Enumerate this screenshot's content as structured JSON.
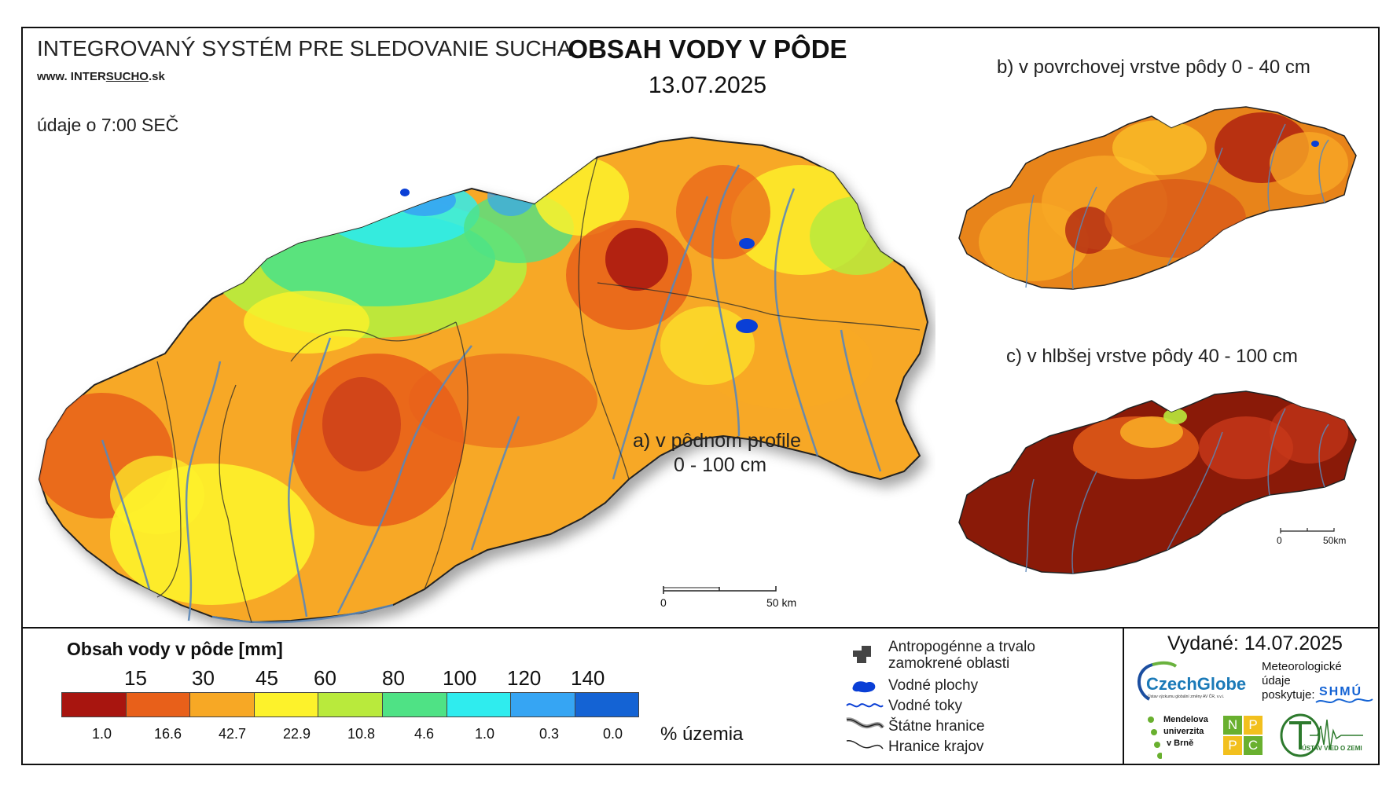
{
  "header": {
    "system_title": "INTEGROVANÝ SYSTÉM PRE SLEDOVANIE SUCHA",
    "url_prefix": "www. INTER",
    "url_brand": "SUCHO",
    "url_suffix": ".sk",
    "data_time": "údaje o 7:00 SEČ",
    "main_title": "OBSAH VODY V PÔDE",
    "date": "13.07.2025"
  },
  "maps": {
    "a_caption_line1": "a) v pôdnom profile",
    "a_caption_line2": "0 - 100 cm",
    "b_caption": "b) v povrchovej vrstve pôdy 0 - 40 cm",
    "c_caption": "c) v hlbšej vrstve pôdy 40 - 100 cm",
    "scale_main_start": "0",
    "scale_main_end": "50 km",
    "scale_small_start": "0",
    "scale_small_end": "50km"
  },
  "legend": {
    "title": "Obsah vody v pôde  [mm]",
    "breaks": [
      "15",
      "30",
      "45",
      "60",
      "80",
      "100",
      "120",
      "140"
    ],
    "classes": [
      {
        "color": "#a8150f",
        "pct": "1.0"
      },
      {
        "color": "#e8601a",
        "pct": "16.6"
      },
      {
        "color": "#f7a825",
        "pct": "42.7"
      },
      {
        "color": "#fdf22b",
        "pct": "22.9"
      },
      {
        "color": "#b9ea3c",
        "pct": "10.8"
      },
      {
        "color": "#4fe285",
        "pct": "4.6"
      },
      {
        "color": "#2fecee",
        "pct": "1.0"
      },
      {
        "color": "#36a5f3",
        "pct": "0.3"
      },
      {
        "color": "#1463d4",
        "pct": "0.0"
      }
    ],
    "pct_label": "% územia"
  },
  "icon_legend": {
    "anthropogenic_line1": "Antropogénne a trvalo",
    "anthropogenic_line2": "zamokrené oblasti",
    "water_bodies": "Vodné plochy",
    "water_streams": "Vodné toky",
    "state_border": "Štátne hranice",
    "region_border": "Hranice krajov"
  },
  "footer": {
    "issued": "Vydané: 14.07.2025",
    "czechglobe": "CzechGlobe",
    "czechglobe_sub": "Ústav výzkumu globální změny AV ČR, v.v.i.",
    "met_line1": "Meteorologické",
    "met_line2": "údaje",
    "met_line3": "poskytuje:",
    "shmu": "SHMÚ",
    "mendel_line1": "Mendelova",
    "mendel_line2": "univerzita",
    "mendel_line3": "v Brně",
    "npc": [
      "N",
      "P",
      "P",
      "C"
    ],
    "uvz": "ÚSTAV VIED O ZEMI"
  },
  "colors": {
    "dark_red": "#a8150f",
    "orange_red": "#e8601a",
    "orange": "#f7a825",
    "yellow": "#fdf22b",
    "light_green": "#b9ea3c",
    "green": "#4fe285",
    "cyan": "#2fecee",
    "light_blue": "#36a5f3",
    "blue": "#1463d4",
    "river": "#5b87b8"
  }
}
